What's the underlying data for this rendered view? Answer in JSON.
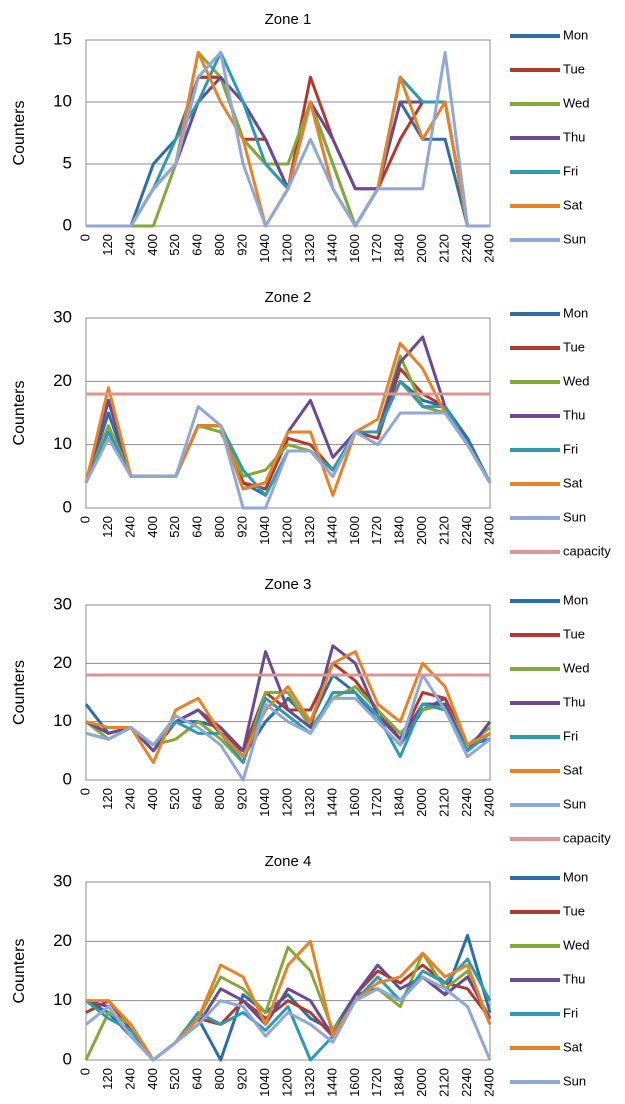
{
  "chart_data": [
    {
      "type": "line",
      "title": "Zone 1",
      "y_label": "Counters",
      "categories": [
        "0",
        "120",
        "240",
        "400",
        "520",
        "640",
        "800",
        "920",
        "1040",
        "1200",
        "1320",
        "1440",
        "1600",
        "1720",
        "1840",
        "2000",
        "2120",
        "2240",
        "2400"
      ],
      "ylim": [
        0,
        15
      ],
      "yticks": [
        0,
        5,
        10,
        15
      ],
      "grid": true,
      "series": [
        {
          "name": "Mon",
          "color": "#2e6ea6",
          "values": [
            0,
            0,
            0,
            5,
            7,
            12,
            12,
            7,
            5,
            3,
            10,
            5,
            0,
            3,
            10,
            7,
            7,
            0,
            0
          ]
        },
        {
          "name": "Tue",
          "color": "#b03a2e",
          "values": [
            0,
            0,
            0,
            3,
            5,
            12,
            12,
            7,
            7,
            3,
            12,
            7,
            3,
            3,
            7,
            10,
            10,
            0,
            0
          ]
        },
        {
          "name": "Wed",
          "color": "#86a83a",
          "values": [
            0,
            0,
            0,
            0,
            5,
            14,
            12,
            7,
            5,
            5,
            10,
            5,
            0,
            3,
            12,
            10,
            10,
            0,
            0
          ]
        },
        {
          "name": "Thu",
          "color": "#6b4a92",
          "values": [
            0,
            0,
            0,
            3,
            5,
            10,
            12,
            10,
            7,
            3,
            10,
            7,
            3,
            3,
            10,
            10,
            10,
            0,
            0
          ]
        },
        {
          "name": "Fri",
          "color": "#2e9bb0",
          "values": [
            0,
            0,
            0,
            3,
            7,
            10,
            14,
            10,
            5,
            3,
            10,
            3,
            0,
            3,
            12,
            10,
            10,
            0,
            0
          ]
        },
        {
          "name": "Sat",
          "color": "#e6832a",
          "values": [
            0,
            0,
            0,
            3,
            5,
            14,
            10,
            7,
            0,
            3,
            10,
            3,
            0,
            3,
            12,
            7,
            10,
            0,
            0
          ]
        },
        {
          "name": "Sun",
          "color": "#8fa8d6",
          "values": [
            0,
            0,
            0,
            3,
            5,
            12,
            14,
            5,
            0,
            3,
            7,
            3,
            0,
            3,
            3,
            3,
            14,
            0,
            0
          ]
        }
      ]
    },
    {
      "type": "line",
      "title": "Zone 2",
      "y_label": "Counters",
      "categories": [
        "0",
        "120",
        "240",
        "400",
        "520",
        "640",
        "800",
        "920",
        "1040",
        "1200",
        "1320",
        "1440",
        "1600",
        "1720",
        "1840",
        "2000",
        "2120",
        "2240",
        "2400"
      ],
      "ylim": [
        0,
        30
      ],
      "yticks": [
        0,
        10,
        20,
        30
      ],
      "grid": true,
      "series": [
        {
          "name": "Mon",
          "color": "#2e6ea6",
          "values": [
            4,
            15,
            5,
            5,
            5,
            13,
            13,
            4,
            2,
            9,
            9,
            6,
            12,
            12,
            20,
            17,
            16,
            11,
            4
          ]
        },
        {
          "name": "Tue",
          "color": "#b03a2e",
          "values": [
            4,
            17,
            5,
            5,
            5,
            13,
            13,
            4,
            3,
            11,
            10,
            6,
            12,
            11,
            22,
            18,
            16,
            10,
            4
          ]
        },
        {
          "name": "Wed",
          "color": "#86a83a",
          "values": [
            4,
            13,
            5,
            5,
            5,
            13,
            12,
            5,
            6,
            10,
            9,
            5,
            12,
            12,
            24,
            16,
            15,
            10,
            4
          ]
        },
        {
          "name": "Thu",
          "color": "#6b4a92",
          "values": [
            4,
            17,
            5,
            5,
            5,
            13,
            13,
            3,
            4,
            12,
            17,
            8,
            12,
            12,
            23,
            27,
            16,
            10,
            4
          ]
        },
        {
          "name": "Fri",
          "color": "#2e9bb0",
          "values": [
            4,
            12,
            5,
            5,
            5,
            13,
            13,
            6,
            2,
            9,
            9,
            6,
            12,
            12,
            20,
            16,
            16,
            10,
            4
          ]
        },
        {
          "name": "Sat",
          "color": "#e6832a",
          "values": [
            4,
            19,
            5,
            5,
            5,
            13,
            13,
            3,
            4,
            12,
            12,
            2,
            12,
            14,
            26,
            22,
            15,
            10,
            4
          ]
        },
        {
          "name": "Sun",
          "color": "#8fa8d6",
          "values": [
            4,
            11,
            5,
            5,
            5,
            16,
            13,
            0,
            0,
            9,
            9,
            5,
            12,
            10,
            15,
            15,
            15,
            10,
            4
          ]
        },
        {
          "name": "capacity",
          "color": "#d99694",
          "values": [
            18,
            18,
            18,
            18,
            18,
            18,
            18,
            18,
            18,
            18,
            18,
            18,
            18,
            18,
            18,
            18,
            18,
            18,
            18
          ]
        }
      ]
    },
    {
      "type": "line",
      "title": "Zone 3",
      "y_label": "Counters",
      "categories": [
        "0",
        "120",
        "240",
        "400",
        "520",
        "640",
        "800",
        "920",
        "1040",
        "1200",
        "1320",
        "1440",
        "1600",
        "1720",
        "1840",
        "2000",
        "2120",
        "2240",
        "2400"
      ],
      "ylim": [
        0,
        30
      ],
      "yticks": [
        0,
        10,
        20,
        30
      ],
      "grid": true,
      "series": [
        {
          "name": "Mon",
          "color": "#2e6ea6",
          "values": [
            13,
            8,
            9,
            6,
            10,
            10,
            9,
            4,
            10,
            14,
            10,
            18,
            15,
            10,
            6,
            12,
            14,
            6,
            7
          ]
        },
        {
          "name": "Tue",
          "color": "#b03a2e",
          "values": [
            10,
            8,
            9,
            5,
            10,
            12,
            8,
            5,
            15,
            12,
            12,
            20,
            17,
            12,
            7,
            15,
            14,
            6,
            8
          ]
        },
        {
          "name": "Wed",
          "color": "#86a83a",
          "values": [
            10,
            7,
            9,
            6,
            7,
            10,
            7,
            3,
            15,
            15,
            9,
            14,
            16,
            12,
            8,
            12,
            13,
            6,
            9
          ]
        },
        {
          "name": "Thu",
          "color": "#6b4a92",
          "values": [
            10,
            8,
            9,
            5,
            10,
            12,
            9,
            5,
            22,
            12,
            9,
            23,
            20,
            11,
            7,
            13,
            13,
            5,
            10
          ]
        },
        {
          "name": "Fri",
          "color": "#2e9bb0",
          "values": [
            8,
            7,
            9,
            6,
            10,
            8,
            8,
            3,
            14,
            11,
            8,
            15,
            15,
            11,
            4,
            13,
            12,
            5,
            8
          ]
        },
        {
          "name": "Sat",
          "color": "#e6832a",
          "values": [
            10,
            9,
            9,
            3,
            12,
            14,
            8,
            4,
            12,
            16,
            10,
            20,
            22,
            13,
            10,
            20,
            16,
            6,
            8
          ]
        },
        {
          "name": "Sun",
          "color": "#8fa8d6",
          "values": [
            8,
            7,
            9,
            6,
            11,
            9,
            6,
            0,
            13,
            10,
            8,
            14,
            14,
            10,
            6,
            18,
            12,
            4,
            7
          ]
        },
        {
          "name": "capacity",
          "color": "#d99694",
          "values": [
            18,
            18,
            18,
            18,
            18,
            18,
            18,
            18,
            18,
            18,
            18,
            18,
            18,
            18,
            18,
            18,
            18,
            18,
            18
          ]
        }
      ]
    },
    {
      "type": "line",
      "title": "Zone 4",
      "y_label": "Counters",
      "categories": [
        "0",
        "120",
        "240",
        "400",
        "520",
        "640",
        "800",
        "920",
        "1040",
        "1200",
        "1320",
        "1440",
        "1600",
        "1720",
        "1840",
        "2000",
        "2120",
        "2240",
        "2400"
      ],
      "ylim": [
        0,
        30
      ],
      "yticks": [
        0,
        10,
        20,
        30
      ],
      "grid": true,
      "series": [
        {
          "name": "Mon",
          "color": "#2e6ea6",
          "values": [
            10,
            8,
            4,
            0,
            3,
            7,
            0,
            11,
            8,
            11,
            7,
            5,
            11,
            12,
            10,
            14,
            11,
            21,
            8
          ]
        },
        {
          "name": "Tue",
          "color": "#b03a2e",
          "values": [
            8,
            10,
            5,
            0,
            3,
            7,
            6,
            10,
            7,
            10,
            8,
            4,
            11,
            15,
            13,
            16,
            13,
            12,
            7
          ]
        },
        {
          "name": "Wed",
          "color": "#86a83a",
          "values": [
            0,
            8,
            6,
            0,
            3,
            7,
            14,
            12,
            8,
            19,
            15,
            5,
            10,
            12,
            9,
            18,
            12,
            15,
            6
          ]
        },
        {
          "name": "Thu",
          "color": "#6b4a92",
          "values": [
            10,
            9,
            4,
            0,
            3,
            6,
            12,
            10,
            6,
            12,
            10,
            4,
            11,
            16,
            12,
            14,
            11,
            14,
            7
          ]
        },
        {
          "name": "Fri",
          "color": "#2e9bb0",
          "values": [
            10,
            7,
            5,
            0,
            3,
            8,
            6,
            8,
            5,
            9,
            0,
            4,
            10,
            14,
            10,
            15,
            13,
            17,
            10
          ]
        },
        {
          "name": "Sat",
          "color": "#e6832a",
          "values": [
            10,
            10,
            6,
            0,
            3,
            7,
            16,
            14,
            6,
            16,
            20,
            4,
            10,
            13,
            14,
            18,
            14,
            16,
            6
          ]
        },
        {
          "name": "Sun",
          "color": "#8fa8d6",
          "values": [
            6,
            9,
            4,
            0,
            3,
            6,
            10,
            9,
            4,
            8,
            6,
            3,
            10,
            12,
            10,
            14,
            12,
            9,
            0
          ]
        }
      ]
    }
  ]
}
